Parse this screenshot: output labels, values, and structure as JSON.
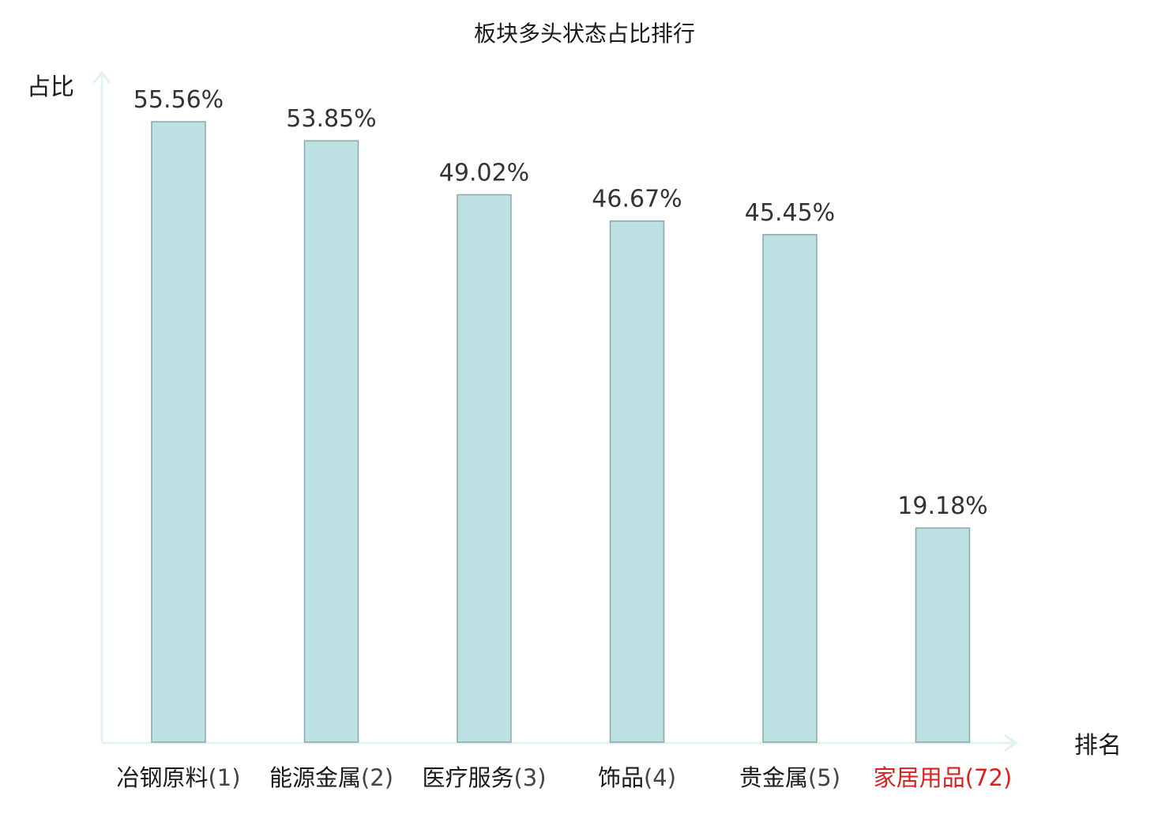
{
  "chart_data": {
    "type": "bar",
    "title": "板块多头状态占比排行",
    "ylabel": "占比",
    "xlabel": "排名",
    "ylim": [
      0,
      65
    ],
    "unit": "%",
    "grid": false,
    "categories": [
      {
        "name": "冶钢原料",
        "rank": "(1)"
      },
      {
        "name": "能源金属",
        "rank": "(2)"
      },
      {
        "name": "医疗服务",
        "rank": "(3)"
      },
      {
        "name": "饰品",
        "rank": "(4)"
      },
      {
        "name": "贵金属",
        "rank": "(5)"
      },
      {
        "name": "家居用品",
        "rank": "(72)",
        "highlight": true
      }
    ],
    "values": [
      55.56,
      53.85,
      49.02,
      46.67,
      45.45,
      19.18
    ],
    "value_labels": [
      "55.56%",
      "53.85%",
      "49.02%",
      "46.67%",
      "45.45%",
      "19.18%"
    ],
    "colors": {
      "bar_fill": "#bde0e2",
      "bar_stroke": "#8aa8aa",
      "axis": "#e1f2f0",
      "highlight_text": "#dd1f1f",
      "category_text": "#1a1a1a",
      "rank_text": "#444444"
    }
  }
}
